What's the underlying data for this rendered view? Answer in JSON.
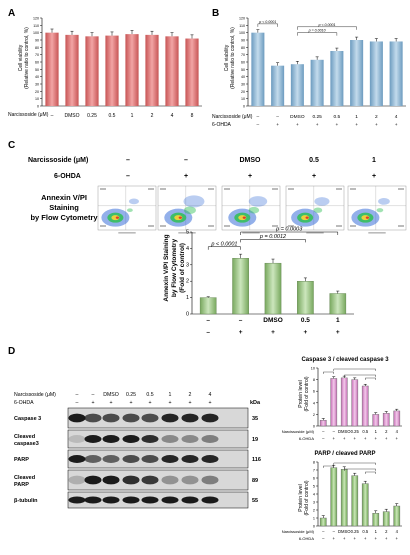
{
  "panels": {
    "A": "A",
    "B": "B",
    "C": "C",
    "D": "D"
  },
  "colors": {
    "red_bar": "#e57373",
    "blue_bar": "#8fb8d6",
    "green_bar": "#a8cf8e",
    "pink_bar": "#e4a1d6",
    "green2_bar": "#9ccc85",
    "gray_ctrl": "#f0f0f0"
  },
  "panelA": {
    "ylabel": "Cell viability",
    "ylabel2": "(Relative ratio to control, %)",
    "row_label": "Narcissoside (μM)",
    "categories": [
      "–",
      "DMSO",
      "0.25",
      "0.5",
      "1",
      "2",
      "4",
      "8"
    ]
  },
  "panelB": {
    "ylabel": "Cell viability",
    "ylabel2": "(Relative ratio to control, %)",
    "row1_label": "Narcissoside (μM)",
    "row2_label": "6-OHDA",
    "row1": [
      "–",
      "–",
      "DMSO",
      "0.25",
      "0.5",
      "1",
      "2",
      "4"
    ],
    "row2": [
      "–",
      "+",
      "+",
      "+",
      "+",
      "+",
      "+",
      "+"
    ],
    "p_values": [
      "p < 0.0001",
      "p < 0.0001",
      "p = 0.0010"
    ]
  },
  "panelC": {
    "row1_label": "Narcissoside (μM)",
    "row2_label": "6-OHDA",
    "row1": [
      "–",
      "–",
      "DMSO",
      "0.5",
      "1"
    ],
    "row2": [
      "–",
      "+",
      "+",
      "+",
      "+"
    ],
    "side_title": [
      "Annexin V/PI",
      "Staining",
      "by Flow Cytometry"
    ],
    "ylabel": "Annexin V/PI Staining",
    "ylabel2": "by Flow Cytometry",
    "ylabel3": "(Fold of control)",
    "yticks": [
      "0",
      "1",
      "2",
      "3",
      "4",
      "5"
    ],
    "p_values": [
      "p < 0.0001",
      "p = 0.0012",
      "p = 0.0003"
    ],
    "bar_row1": [
      "–",
      "–",
      "DMSO",
      "0.5",
      "1"
    ],
    "bar_row2": [
      "–",
      "+",
      "+",
      "+",
      "+"
    ]
  },
  "panelD": {
    "row1_label": "Narcissoside (μM)",
    "row2_label": "6-OHDA",
    "row1": [
      "–",
      "–",
      "DMSO",
      "0.25",
      "0.5",
      "1",
      "2",
      "4"
    ],
    "row2": [
      "–",
      "+",
      "+",
      "+",
      "+",
      "+",
      "+",
      "+"
    ],
    "kda": "kDa",
    "blots": [
      {
        "label": "Caspase 3",
        "kda": "35"
      },
      {
        "label": "Cleaved caspase3",
        "kda": "19"
      },
      {
        "label": "PARP",
        "kda": "116"
      },
      {
        "label": "Cleaved PARP",
        "kda": "89"
      },
      {
        "label": "β-tubulin",
        "kda": "55"
      }
    ],
    "chart1_title": "Caspase 3 / cleaved caspase 3",
    "chart2_title": "PARP / cleaved PARP",
    "ylabel": "Protein level",
    "ylabel2": "(Fold of control)"
  },
  "chart_data": [
    {
      "type": "bar",
      "panel": "A",
      "categories": [
        "–",
        "DMSO",
        "0.25",
        "0.5",
        "1",
        "2",
        "4",
        "8"
      ],
      "values": [
        100,
        97,
        95,
        96,
        98,
        97,
        95,
        92
      ],
      "ylim": [
        0,
        120
      ],
      "yticks": [
        0,
        10,
        20,
        30,
        40,
        50,
        60,
        70,
        80,
        90,
        100,
        110,
        120
      ]
    },
    {
      "type": "bar",
      "panel": "B",
      "categories": [
        "–",
        "+",
        "DMSO",
        "0.25",
        "0.5",
        "1",
        "2",
        "4"
      ],
      "values": [
        100,
        55,
        57,
        63,
        75,
        90,
        88,
        88
      ],
      "ylim": [
        0,
        120
      ],
      "yticks": [
        0,
        10,
        20,
        30,
        40,
        50,
        60,
        70,
        80,
        90,
        100,
        110,
        120
      ]
    },
    {
      "type": "bar",
      "panel": "C",
      "categories": [
        "–",
        "+",
        "DMSO",
        "0.5",
        "1"
      ],
      "values": [
        1.0,
        3.4,
        3.1,
        2.0,
        1.25
      ],
      "errors": [
        0.05,
        0.25,
        0.25,
        0.2,
        0.15
      ],
      "ylim": [
        0,
        5
      ]
    },
    {
      "type": "bar",
      "panel": "D1",
      "title": "Caspase 3 / cleaved caspase 3",
      "categories": [
        "–",
        "+",
        "DMSO",
        "0.25",
        "0.5",
        "1",
        "2",
        "4"
      ],
      "values": [
        1.0,
        8.2,
        8.3,
        8.0,
        6.9,
        2.0,
        2.2,
        2.6
      ],
      "ylim": [
        0,
        10
      ],
      "yticks": [
        0,
        2,
        4,
        6,
        8,
        10
      ]
    },
    {
      "type": "bar",
      "panel": "D2",
      "title": "PARP / cleaved PARP",
      "categories": [
        "–",
        "+",
        "DMSO",
        "0.25",
        "0.5",
        "1",
        "2",
        "4"
      ],
      "values": [
        1.0,
        7.3,
        7.1,
        6.3,
        5.3,
        1.6,
        1.8,
        2.5
      ],
      "ylim": [
        0,
        8
      ],
      "yticks": [
        0,
        1,
        2,
        3,
        4,
        5,
        6,
        7,
        8
      ]
    }
  ]
}
